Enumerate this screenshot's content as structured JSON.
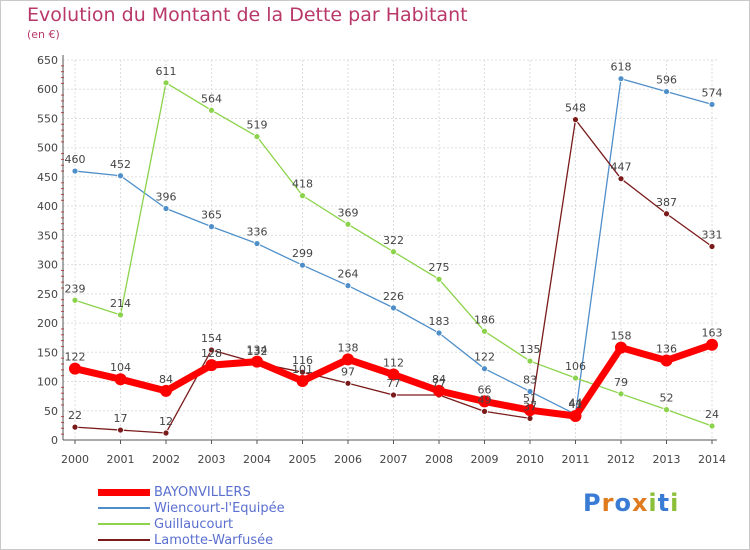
{
  "chart_data": {
    "type": "line",
    "title": "Evolution du Montant de la Dette par Habitant",
    "subtitle": "(en €)",
    "x": [
      "2000",
      "2001",
      "2002",
      "2003",
      "2004",
      "2005",
      "2006",
      "2007",
      "2008",
      "2009",
      "2010",
      "2011",
      "2012",
      "2013",
      "2014"
    ],
    "yticks": [
      0,
      50,
      100,
      150,
      200,
      250,
      300,
      350,
      400,
      450,
      500,
      550,
      600,
      650
    ],
    "ylim": [
      0,
      650
    ],
    "grid": true,
    "legend_position": "bottom-left",
    "series": [
      {
        "name": "BAYONVILLERS",
        "color": "#ff0000",
        "values": [
          122,
          104,
          84,
          128,
          134,
          101,
          138,
          112,
          84,
          66,
          51,
          41,
          158,
          136,
          163
        ],
        "labels": [
          "122",
          "104",
          "84",
          "128",
          "134",
          "101",
          "138",
          "112",
          "84",
          "66",
          "51",
          "41",
          "158",
          "136",
          "163"
        ]
      },
      {
        "name": "Wiencourt-l'Equipée",
        "color": "#4f8fc9",
        "values": [
          460,
          452,
          396,
          365,
          336,
          299,
          264,
          226,
          183,
          122,
          83,
          44,
          618,
          596,
          574
        ],
        "labels": [
          "460",
          "452",
          "396",
          "365",
          "336",
          "299",
          "264",
          "226",
          "183",
          "122",
          "83",
          "44",
          "618",
          "596",
          "574"
        ]
      },
      {
        "name": "Guillaucourt",
        "color": "#8bd34a",
        "values": [
          239,
          214,
          611,
          564,
          519,
          418,
          369,
          322,
          275,
          186,
          135,
          106,
          79,
          52,
          24
        ],
        "labels": [
          "239",
          "214",
          "611",
          "564",
          "519",
          "418",
          "369",
          "322",
          "275",
          "186",
          "135",
          "106",
          "79",
          "52",
          "24"
        ]
      },
      {
        "name": "Lamotte-Warfusée",
        "color": "#7a1a1a",
        "values": [
          22,
          17,
          12,
          154,
          132,
          116,
          97,
          77,
          77,
          49,
          37,
          548,
          447,
          387,
          331
        ],
        "labels": [
          "22",
          "17",
          "12",
          "154",
          "132",
          "116",
          "97",
          "77",
          "77",
          "49",
          "37",
          "548",
          "447",
          "387",
          "331"
        ]
      }
    ]
  },
  "logo": {
    "text": "Proxiti",
    "colors": [
      "#3a7bd5",
      "#e07a1f",
      "#3a7bd5",
      "#e07a1f",
      "#8bbf3a",
      "#3a7bd5",
      "#8bbf3a"
    ]
  }
}
